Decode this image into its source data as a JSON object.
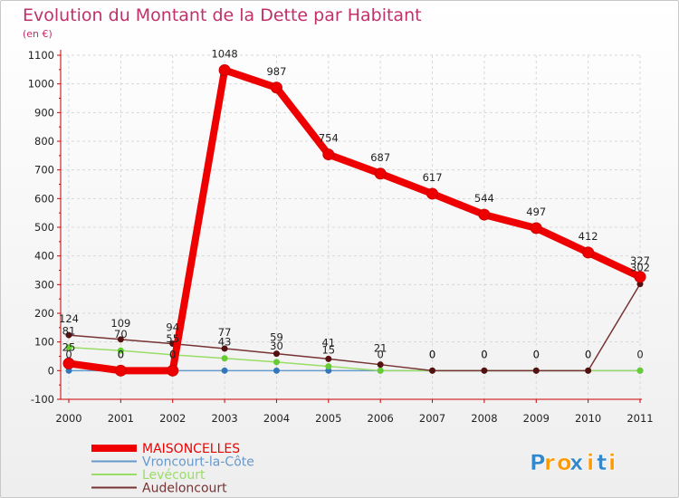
{
  "chart_data": {
    "type": "line",
    "title": "Evolution du Montant de la Dette par Habitant",
    "subtitle": "(en €)",
    "x": [
      "2000",
      "2001",
      "2002",
      "2003",
      "2004",
      "2005",
      "2006",
      "2007",
      "2008",
      "2009",
      "2010",
      "2011"
    ],
    "ylim": [
      -100,
      1100
    ],
    "yticks": [
      -100,
      0,
      100,
      200,
      300,
      400,
      500,
      600,
      700,
      800,
      900,
      1000,
      1100
    ],
    "grid": true,
    "legend_position": "bottom-left",
    "series": [
      {
        "name": "MAISONCELLES",
        "color": "#ee0000",
        "values": [
          25,
          0,
          0,
          1048,
          987,
          754,
          687,
          617,
          544,
          497,
          412,
          327
        ],
        "labels": [
          "25",
          "0",
          "0",
          "1048",
          "987",
          "754",
          "687",
          "617",
          "544",
          "497",
          "412",
          "327"
        ]
      },
      {
        "name": "Vroncourt-la-Côte",
        "color": "#6699cc",
        "values": [
          0,
          0,
          0,
          0,
          0,
          0,
          0,
          0,
          0,
          0,
          0,
          0
        ],
        "labels": [
          "0",
          "0",
          "0",
          null,
          null,
          null,
          null,
          null,
          null,
          null,
          null,
          null
        ]
      },
      {
        "name": "Levécourt",
        "color": "#99dd66",
        "values": [
          81,
          70,
          55,
          43,
          30,
          15,
          0,
          0,
          0,
          0,
          0,
          0
        ],
        "labels": [
          "81",
          "70",
          "55",
          "43",
          "30",
          "15",
          "0",
          "0",
          "0",
          "0",
          "0",
          "0"
        ]
      },
      {
        "name": "Audeloncourt",
        "color": "#773333",
        "values": [
          124,
          109,
          94,
          77,
          59,
          41,
          21,
          0,
          0,
          0,
          0,
          302
        ],
        "labels": [
          "124",
          "109",
          "94",
          "77",
          "59",
          "41",
          "21",
          "0",
          "0",
          "0",
          "0",
          "302"
        ]
      }
    ]
  },
  "brand": {
    "letters": [
      "P",
      "r",
      "o",
      "x",
      "i",
      "t",
      "i"
    ],
    "colors": [
      "#3388cc",
      "#ff9900",
      "#ff9900",
      "#3388cc",
      "#ff9900",
      "#3388cc",
      "#ff9900"
    ]
  }
}
